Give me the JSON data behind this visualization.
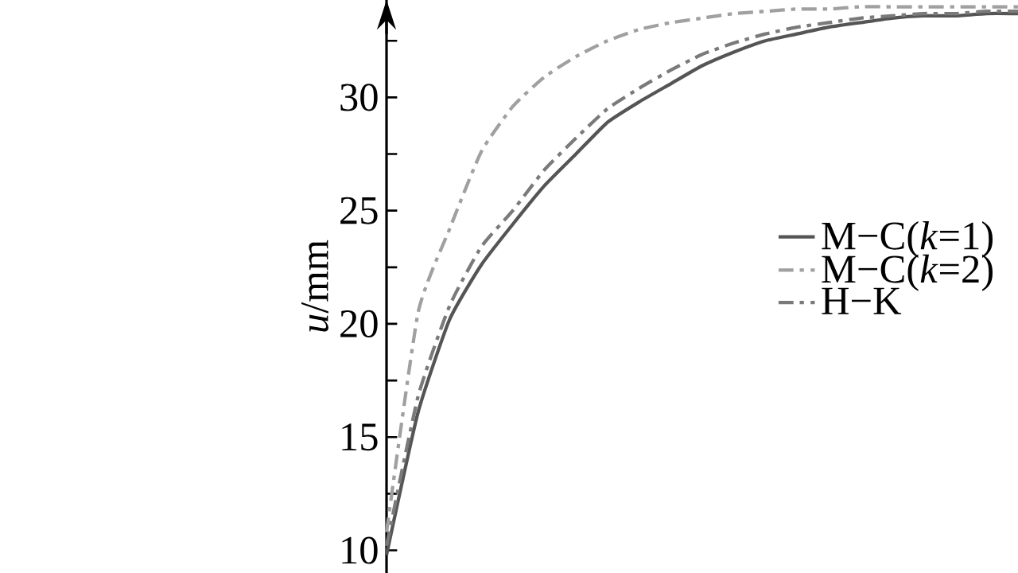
{
  "chart_data": {
    "type": "line",
    "ylabel": "*u*/mm",
    "categories": [
      null,
      null,
      null,
      null,
      null,
      null,
      null,
      null,
      null,
      null,
      null,
      null,
      null,
      null,
      null,
      null,
      null,
      null,
      null,
      null,
      null
    ],
    "series": [
      {
        "name": "M−C(*k*=1)",
        "color": "#555555",
        "line_style": "solid",
        "values": [
          9.8,
          16.1,
          20.2,
          22.6,
          24.4,
          26.1,
          27.5,
          28.9,
          29.8,
          30.6,
          31.4,
          32.0,
          32.5,
          32.8,
          33.1,
          33.3,
          33.5,
          33.6,
          33.6,
          33.7,
          33.7
        ]
      },
      {
        "name": "M−C(*k*=2)",
        "color": "#a0a0a0",
        "line_style": "dashdot",
        "values": [
          10.8,
          20.5,
          24.2,
          27.6,
          29.6,
          30.9,
          31.8,
          32.5,
          33.0,
          33.3,
          33.5,
          33.7,
          33.8,
          33.9,
          33.9,
          34.0,
          34.0,
          34.0,
          34.0,
          34.0,
          34.0
        ]
      },
      {
        "name": "H−K",
        "color": "#7a7a7a",
        "line_style": "dashdot",
        "values": [
          10.2,
          16.8,
          20.8,
          23.4,
          25.0,
          26.8,
          28.2,
          29.5,
          30.4,
          31.2,
          31.9,
          32.4,
          32.8,
          33.1,
          33.3,
          33.5,
          33.6,
          33.7,
          33.7,
          33.8,
          33.8
        ]
      }
    ],
    "ylim": [
      9,
      34.3
    ],
    "yticks": [
      10,
      {
        "value": 12.5,
        "label": null
      },
      15,
      {
        "value": 17.5,
        "label": null
      },
      20,
      {
        "value": 22.5,
        "label": null
      },
      25,
      {
        "value": 27.5,
        "label": null
      },
      30,
      {
        "value": 32.5,
        "label": null
      }
    ],
    "tick_labels": "y",
    "legend": "right",
    "marker": "none"
  }
}
